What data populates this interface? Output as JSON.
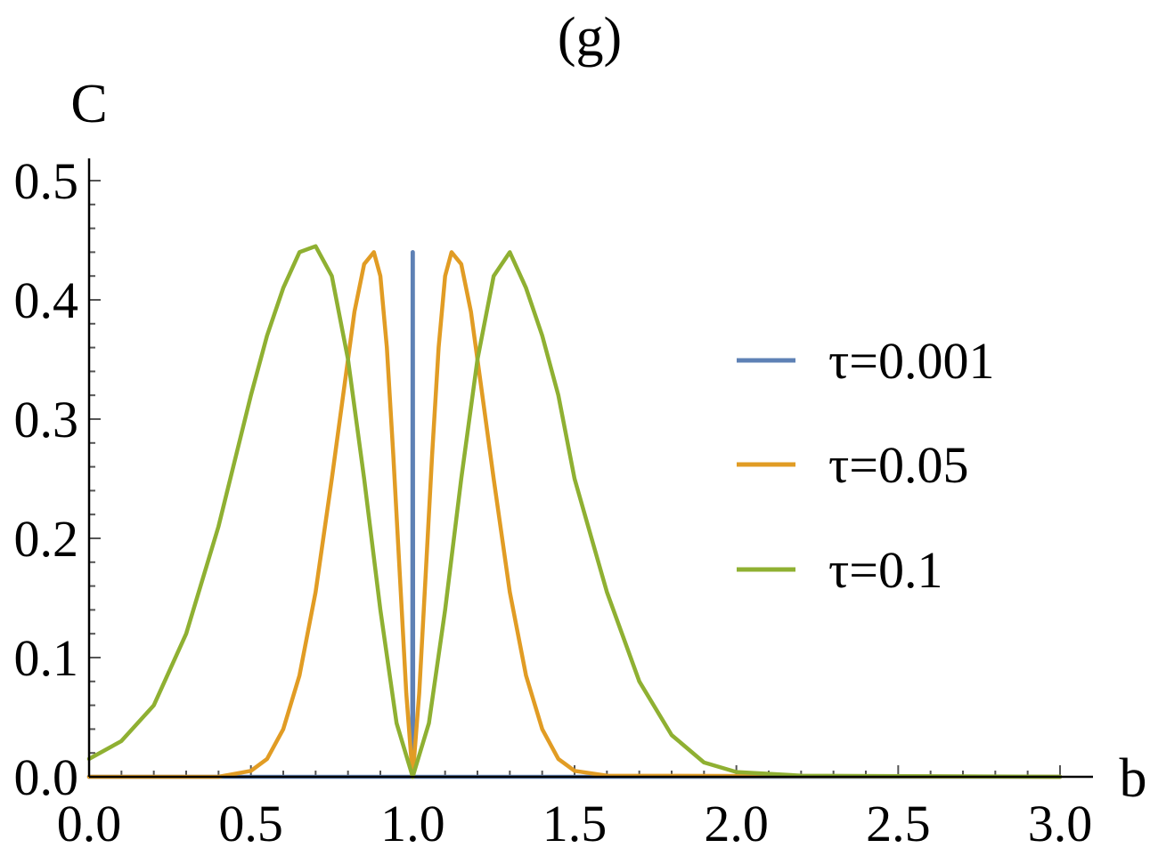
{
  "panel_label": "(g)",
  "chart_data": {
    "type": "line",
    "title": "(g)",
    "xlabel": "b",
    "ylabel": "C",
    "xlim": [
      0,
      3
    ],
    "ylim": [
      0,
      0.5
    ],
    "x_ticks": [
      "0.0",
      "0.5",
      "1.0",
      "1.5",
      "2.0",
      "2.5",
      "3.0"
    ],
    "y_ticks": [
      "0.0",
      "0.1",
      "0.2",
      "0.3",
      "0.4",
      "0.5"
    ],
    "grid": false,
    "legend_position": "right",
    "series": [
      {
        "name": "τ=0.001",
        "color": "#5E81B5",
        "x": [
          0.0,
          0.5,
          0.99,
          0.9985,
          0.9995,
          1.0,
          1.0005,
          1.0015,
          1.01,
          1.5,
          3.0
        ],
        "y": [
          0.0,
          0.0,
          0.0,
          0.0,
          0.44,
          0.0,
          0.44,
          0.0,
          0.0,
          0.0,
          0.0
        ]
      },
      {
        "name": "τ=0.05",
        "color": "#E19C24",
        "x": [
          0.0,
          0.4,
          0.5,
          0.55,
          0.6,
          0.65,
          0.7,
          0.75,
          0.78,
          0.82,
          0.85,
          0.88,
          0.9,
          0.92,
          0.94,
          0.96,
          0.98,
          1.0,
          1.02,
          1.04,
          1.06,
          1.08,
          1.1,
          1.12,
          1.15,
          1.18,
          1.22,
          1.25,
          1.3,
          1.35,
          1.4,
          1.45,
          1.5,
          1.6,
          3.0
        ],
        "y": [
          0.0,
          0.0,
          0.005,
          0.015,
          0.04,
          0.085,
          0.155,
          0.25,
          0.31,
          0.39,
          0.43,
          0.44,
          0.42,
          0.36,
          0.27,
          0.17,
          0.07,
          0.0,
          0.07,
          0.17,
          0.27,
          0.36,
          0.42,
          0.44,
          0.43,
          0.39,
          0.31,
          0.25,
          0.155,
          0.085,
          0.04,
          0.015,
          0.005,
          0.001,
          0.0
        ]
      },
      {
        "name": "τ=0.1",
        "color": "#8FB032",
        "x": [
          0.0,
          0.1,
          0.2,
          0.3,
          0.4,
          0.5,
          0.55,
          0.6,
          0.65,
          0.7,
          0.75,
          0.8,
          0.85,
          0.9,
          0.95,
          1.0,
          1.05,
          1.1,
          1.15,
          1.2,
          1.25,
          1.3,
          1.35,
          1.4,
          1.45,
          1.5,
          1.6,
          1.7,
          1.8,
          1.9,
          2.0,
          2.2,
          3.0
        ],
        "y": [
          0.015,
          0.03,
          0.06,
          0.12,
          0.21,
          0.32,
          0.37,
          0.41,
          0.44,
          0.445,
          0.42,
          0.35,
          0.25,
          0.14,
          0.045,
          0.0,
          0.045,
          0.14,
          0.25,
          0.35,
          0.42,
          0.44,
          0.41,
          0.37,
          0.32,
          0.25,
          0.155,
          0.08,
          0.035,
          0.012,
          0.004,
          0.001,
          0.0
        ]
      }
    ]
  }
}
